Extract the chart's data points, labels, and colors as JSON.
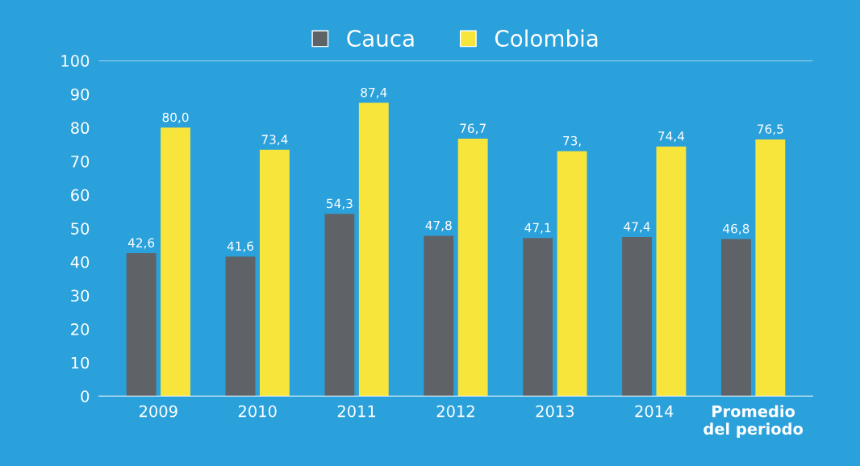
{
  "chart_data": {
    "type": "bar",
    "categories": [
      "2009",
      "2010",
      "2011",
      "2012",
      "2013",
      "2014",
      "Promedio\ndel periodo"
    ],
    "series": [
      {
        "name": "Cauca",
        "color": "#5f6368",
        "values": [
          42.6,
          41.6,
          54.3,
          47.8,
          47.1,
          47.4,
          46.8
        ],
        "value_labels": [
          "42,6",
          "41,6",
          "54,3",
          "47,8",
          "47,1",
          "47,4",
          "46,8"
        ]
      },
      {
        "name": "Colombia",
        "color": "#f7e53b",
        "values": [
          80.0,
          73.4,
          87.4,
          76.7,
          73,
          74.4,
          76.5
        ],
        "value_labels": [
          "80,0",
          "73,4",
          "87,4",
          "76,7",
          "73,",
          "74,4",
          "76,5"
        ]
      }
    ],
    "ylim": [
      0,
      100
    ],
    "yticks": [
      0,
      10,
      20,
      30,
      40,
      50,
      60,
      70,
      80,
      90,
      100
    ],
    "grid": false,
    "legend": "top"
  }
}
